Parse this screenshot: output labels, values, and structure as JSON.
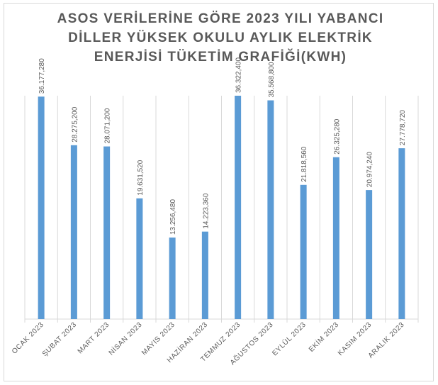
{
  "chart_data": {
    "type": "bar",
    "title": "ASOS VERİLERİNE GÖRE 2023 YILI YABANCI DİLLER YÜKSEK OKULU AYLIK ELEKTRİK ENERJİSİ TÜKETİM GRAFİĞİ(KWH)",
    "categories": [
      "OCAK 2023",
      "ŞUBAT 2023",
      "MART 2023",
      "NİSAN 2023",
      "MAYIS 2023",
      "HAZİRAN 2023",
      "TEMMUZ 2023",
      "AĞUSTOS 2023",
      "EYLÜL 2023",
      "EKİM 2023",
      "KASIM 2023",
      "ARALIK 2023"
    ],
    "values": [
      36.17728,
      28.2752,
      28.0712,
      19.63152,
      13.25648,
      14.22336,
      36.3224,
      35.5688,
      21.81856,
      26.32528,
      20.97424,
      27.77872
    ],
    "value_labels": [
      "36.177,280",
      "28.275,200",
      "28.071,200",
      "19.631,520",
      "13.256,480",
      "14.223,360",
      "36.322,400",
      "35.568,800",
      "21.818,560",
      "26.325,280",
      "20.974,240",
      "27.778,720"
    ],
    "xlabel": "",
    "ylabel": "",
    "ylim": [
      0,
      36.3224
    ],
    "grid": "vertical",
    "legend": "none",
    "bar_color": "#5b9bd5",
    "grid_color": "#d9d9d9",
    "label_color": "#595959"
  }
}
